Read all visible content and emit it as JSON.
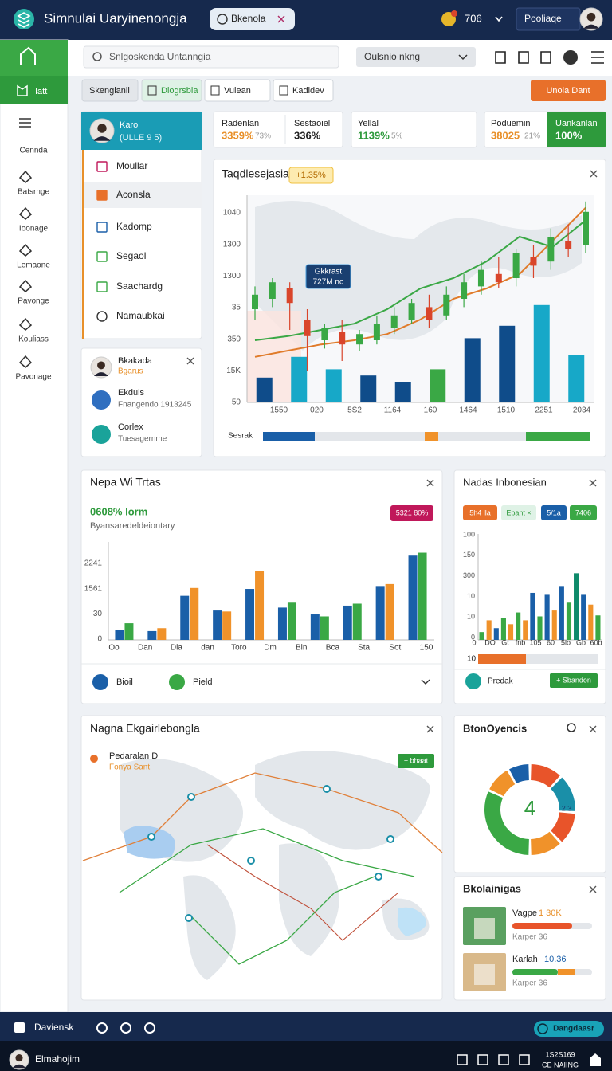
{
  "header": {
    "title": "Simnulai Uaryinenongja",
    "tab": "Bkenola",
    "count": "706",
    "button": "Pooliaqe"
  },
  "sidebar": {
    "active": "Iatt",
    "items": [
      "Cennda",
      "Batsrnge",
      "Ioonage",
      "Lemaone",
      "Pavonge",
      "Kouliass",
      "Pavonage"
    ]
  },
  "toolbar": {
    "search": "Snlgoskenda Untanngia",
    "dropdown": "Oulsnio nkng"
  },
  "filters": {
    "buttons": [
      "Skenglanll",
      "Diogrsbia",
      "Vulean",
      "Kadidev"
    ],
    "action": "Unola Dant"
  },
  "profile": {
    "name": "Karol",
    "subtitle": "(ULLE 9 5)",
    "menu": [
      "Moullar",
      "Aconsla",
      "Kadomp",
      "Segaol",
      "Saachardg",
      "Namaubkai"
    ]
  },
  "stats": [
    {
      "label": "Radenlan",
      "value": "3359%",
      "delta": "73%"
    },
    {
      "label": "Sestaoiel",
      "value": "336%"
    },
    {
      "label": "Yellal",
      "value": "1139%",
      "delta": "5%"
    },
    {
      "label": "Poduemin",
      "value": "38025",
      "delta": "21%"
    },
    {
      "label": "Uankanlan",
      "value": "100%"
    }
  ],
  "main_chart": {
    "title": "Taqdlesejasia",
    "badge": "+1.35%",
    "tooltip": [
      "Gkkrast",
      "727M no"
    ],
    "ylabels": [
      "1040",
      "1300",
      "1300",
      "35",
      "350",
      "15K",
      "50"
    ],
    "xlabels": [
      "1550",
      "020",
      "5S2",
      "1164",
      "160",
      "1464",
      "1510",
      "2251",
      "2034"
    ],
    "ylim": [
      0,
      100
    ],
    "bars": {
      "values": [
        12,
        22,
        16,
        13,
        10,
        16,
        31,
        37,
        47,
        23
      ],
      "colors": [
        "#0f4c8a",
        "#17a8c8",
        "#17a8c8",
        "#0f4c8a",
        "#0f4c8a",
        "#3aa845",
        "#0f4c8a",
        "#0f4c8a",
        "#17a8c8",
        "#17a8c8"
      ]
    },
    "candles": [
      {
        "o": 45,
        "c": 52,
        "h": 56,
        "l": 40
      },
      {
        "o": 50,
        "c": 58,
        "h": 60,
        "l": 46
      },
      {
        "o": 55,
        "c": 48,
        "h": 58,
        "l": 35
      },
      {
        "o": 40,
        "c": 32,
        "h": 45,
        "l": 15
      },
      {
        "o": 30,
        "c": 36,
        "h": 38,
        "l": 26
      },
      {
        "o": 34,
        "c": 28,
        "h": 40,
        "l": 20
      },
      {
        "o": 28,
        "c": 33,
        "h": 35,
        "l": 25
      },
      {
        "o": 30,
        "c": 38,
        "h": 42,
        "l": 28
      },
      {
        "o": 36,
        "c": 42,
        "h": 46,
        "l": 33
      },
      {
        "o": 40,
        "c": 48,
        "h": 50,
        "l": 38
      },
      {
        "o": 46,
        "c": 40,
        "h": 52,
        "l": 36
      },
      {
        "o": 42,
        "c": 52,
        "h": 56,
        "l": 40
      },
      {
        "o": 50,
        "c": 58,
        "h": 62,
        "l": 46
      },
      {
        "o": 56,
        "c": 64,
        "h": 68,
        "l": 52
      },
      {
        "o": 62,
        "c": 58,
        "h": 70,
        "l": 55
      },
      {
        "o": 60,
        "c": 72,
        "h": 74,
        "l": 56
      },
      {
        "o": 70,
        "c": 66,
        "h": 76,
        "l": 60
      },
      {
        "o": 68,
        "c": 80,
        "h": 84,
        "l": 64
      },
      {
        "o": 78,
        "c": 74,
        "h": 86,
        "l": 70
      },
      {
        "o": 76,
        "c": 92,
        "h": 97,
        "l": 72
      }
    ],
    "up_color": "#3aa845",
    "down_color": "#d9452b",
    "lines": [
      {
        "color": "#3aa845",
        "values": [
          30,
          32,
          35,
          38,
          45,
          55,
          60,
          68,
          80,
          75,
          88
        ]
      },
      {
        "color": "#e07b2a",
        "values": [
          22,
          25,
          28,
          30,
          33,
          40,
          50,
          55,
          62,
          78,
          94
        ]
      }
    ],
    "legend": "Sesrak"
  },
  "contacts": {
    "items": [
      {
        "name": "Bkakada",
        "detail": "Bgarus"
      },
      {
        "name": "Ekduls",
        "detail": "Fnangendo 1913245"
      },
      {
        "name": "Corlex",
        "detail": "Tuesagernme"
      }
    ]
  },
  "trends": {
    "title": "Nepa Wi Trtas",
    "value": "0608% lorm",
    "subtitle": "Byansaredeldeiontary",
    "badge": "5321 80%",
    "ylabels": [
      "2241",
      "1561",
      "30",
      "0"
    ],
    "xlabels": [
      "Oo",
      "Dan",
      "Dia",
      "dan",
      "Toro",
      "Dm",
      "Bin",
      "Bca",
      "Sta",
      "Sot",
      "150"
    ],
    "ylim": [
      0,
      100
    ],
    "series": [
      {
        "color": "#1a5fa8",
        "values": [
          10,
          9,
          45,
          30,
          52,
          33,
          26,
          35,
          55,
          86
        ]
      },
      {
        "colors": [
          "#3aa845",
          "#f0922a",
          "#f0922a",
          "#f0922a",
          "#f0922a",
          "#3aa845",
          "#3aa845",
          "#3aa845",
          "#f0922a",
          "#3aa845"
        ],
        "values": [
          17,
          12,
          53,
          29,
          70,
          38,
          24,
          37,
          57,
          89
        ]
      }
    ],
    "footer": [
      "Bioil",
      "Pield"
    ]
  },
  "regional": {
    "title": "Nadas Inbonesian",
    "chips": [
      "5h4 lla",
      "Ebant ×",
      "5/1a",
      "7406"
    ],
    "ylabels": [
      "100",
      "150",
      "300",
      "10",
      "10",
      "0"
    ],
    "xlabels": [
      "0l",
      "DO",
      "Gt",
      "fnb",
      "105",
      "60",
      "5lo",
      "Gb",
      "60b"
    ],
    "ylim": [
      0,
      100
    ],
    "values": [
      8,
      20,
      12,
      22,
      16,
      28,
      20,
      48,
      24,
      46,
      30,
      55,
      38,
      68,
      46,
      36,
      25
    ],
    "colors": [
      "#3aa845",
      "#f0922a",
      "#1a5fa8",
      "#3aa845",
      "#f0922a",
      "#3aa845",
      "#f0922a",
      "#1a5fa8",
      "#3aa845",
      "#1a5fa8",
      "#f0922a",
      "#1a5fa8",
      "#3aa845",
      "#0e8a6a",
      "#1a5fa8",
      "#f0922a",
      "#3aa845"
    ],
    "progress_label": "10",
    "footer": "Predak",
    "button": "+ Sbandon"
  },
  "map": {
    "title": "Nagna Ekgairlebongla",
    "legend": [
      "Pedaralan D",
      "Fonya Sant"
    ],
    "button": "+ bhaat"
  },
  "donut": {
    "title": "BtonOyencis",
    "center": "4",
    "side": "2 3",
    "values": [
      12,
      14,
      12,
      12,
      32,
      10,
      8
    ],
    "colors": [
      "#e8542a",
      "#1a8fa8",
      "#e8542a",
      "#f0922a",
      "#3aa845",
      "#f0922a",
      "#1a5fa8"
    ]
  },
  "list": {
    "title": "Bkolainigas",
    "items": [
      {
        "name": "Vagpe",
        "value": "1 30K",
        "detail": "Karper 36"
      },
      {
        "name": "Karlah",
        "value": "10.36",
        "detail": "Karper 36"
      }
    ]
  },
  "bottom": {
    "label": "Daviensk",
    "button": "Dangdaasr"
  },
  "footer": {
    "user": "Elmahojim",
    "code": "1S2S169",
    "status": "CE NAIING"
  }
}
